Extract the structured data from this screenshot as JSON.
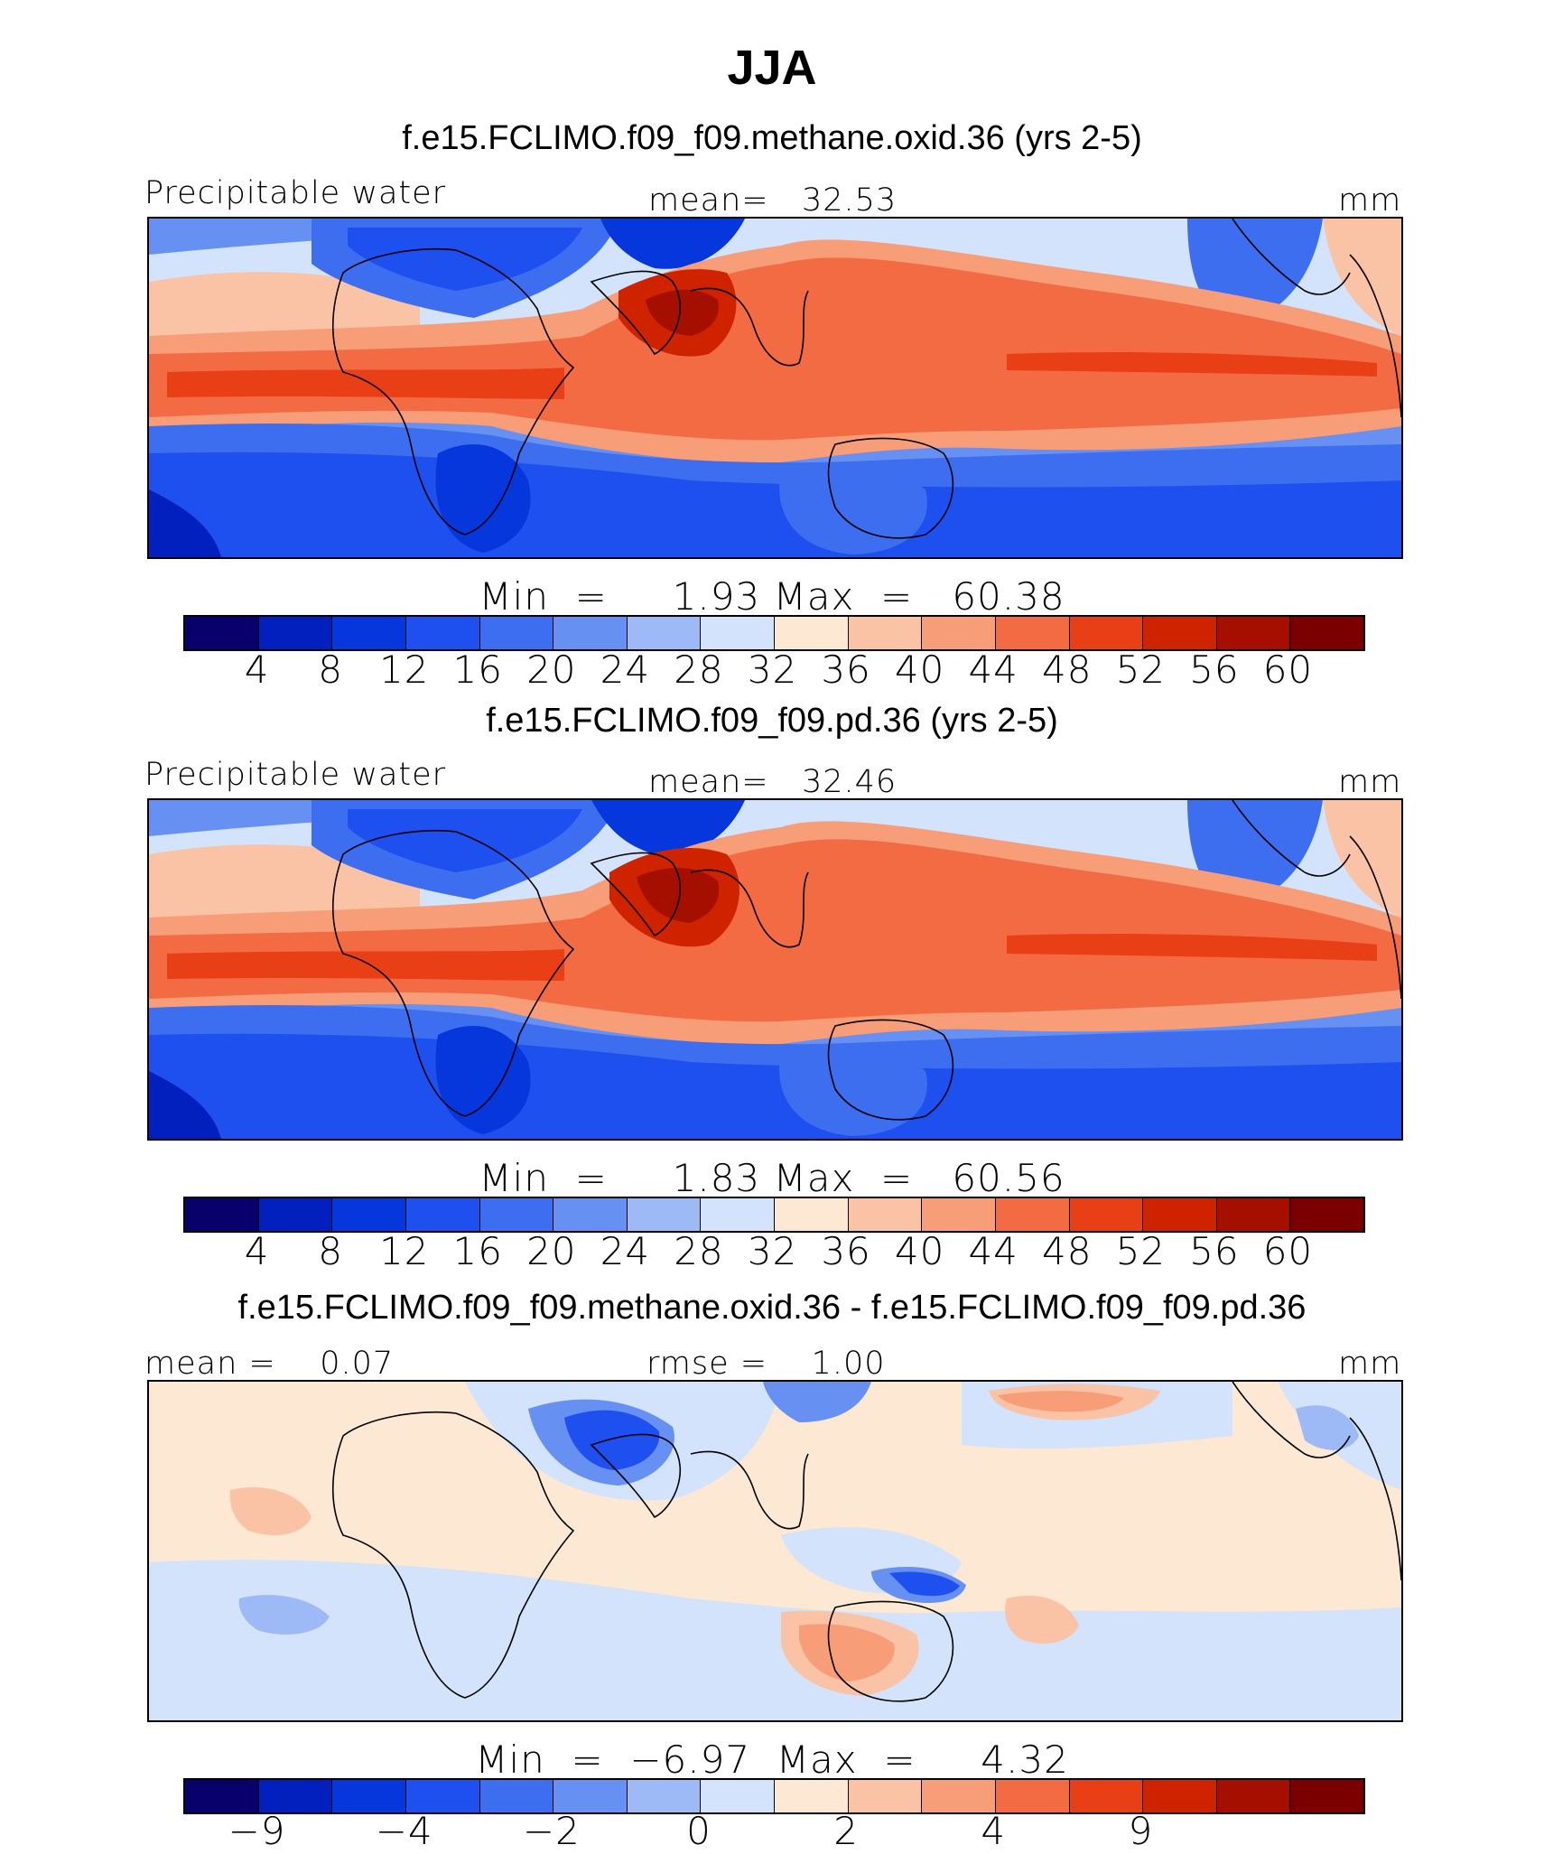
{
  "title": "JJA",
  "palette": {
    "full": [
      "#08006b",
      "#0220bd",
      "#0637dc",
      "#1e50f0",
      "#3d6eef",
      "#6690f2",
      "#9db9f6",
      "#d2e3fb",
      "#fde9d3",
      "#fbc3a5",
      "#f79e78",
      "#f26b43",
      "#e93f17",
      "#cf2300",
      "#a50f00",
      "#7a0000"
    ],
    "diff": [
      "#08006b",
      "#0220bd",
      "#0637dc",
      "#1e50f0",
      "#3d6eef",
      "#6690f2",
      "#9db9f6",
      "#d2e3fb",
      "#fde9d3",
      "#fbc3a5",
      "#f79e78",
      "#f26b43",
      "#e93f17",
      "#cf2300",
      "#a50f00",
      "#7a0000"
    ]
  },
  "panel1": {
    "case_title": "f.e15.FCLIMO.f09_f09.methane.oxid.36 (yrs 2-5)",
    "var_label": "Precipitable water",
    "mean_label": "mean=",
    "mean_value": "32.53",
    "units": "mm",
    "min_label": "Min",
    "min_value": "1.93",
    "max_label": "Max",
    "max_value": "60.38",
    "eq": "=",
    "ticks": [
      "4",
      "8",
      "12",
      "16",
      "20",
      "24",
      "28",
      "32",
      "36",
      "40",
      "44",
      "48",
      "52",
      "56",
      "60"
    ]
  },
  "panel2": {
    "case_title": "f.e15.FCLIMO.f09_f09.pd.36 (yrs 2-5)",
    "var_label": "Precipitable water",
    "mean_label": "mean=",
    "mean_value": "32.46",
    "units": "mm",
    "min_label": "Min",
    "min_value": "1.83",
    "max_label": "Max",
    "max_value": "60.56",
    "eq": "=",
    "ticks": [
      "4",
      "8",
      "12",
      "16",
      "20",
      "24",
      "28",
      "32",
      "36",
      "40",
      "44",
      "48",
      "52",
      "56",
      "60"
    ]
  },
  "panel3": {
    "case_title": "f.e15.FCLIMO.f09_f09.methane.oxid.36 - f.e15.FCLIMO.f09_f09.pd.36",
    "mean_label": "mean =",
    "mean_value": "0.07",
    "rmse_label": "rmse =",
    "rmse_value": "1.00",
    "units": "mm",
    "min_label": "Min",
    "min_value": "−6.97",
    "max_label": "Max",
    "max_value": "4.32",
    "eq": "=",
    "ticks": [
      "−9",
      "−4",
      "−2",
      "0",
      "2",
      "4",
      "9"
    ]
  }
}
